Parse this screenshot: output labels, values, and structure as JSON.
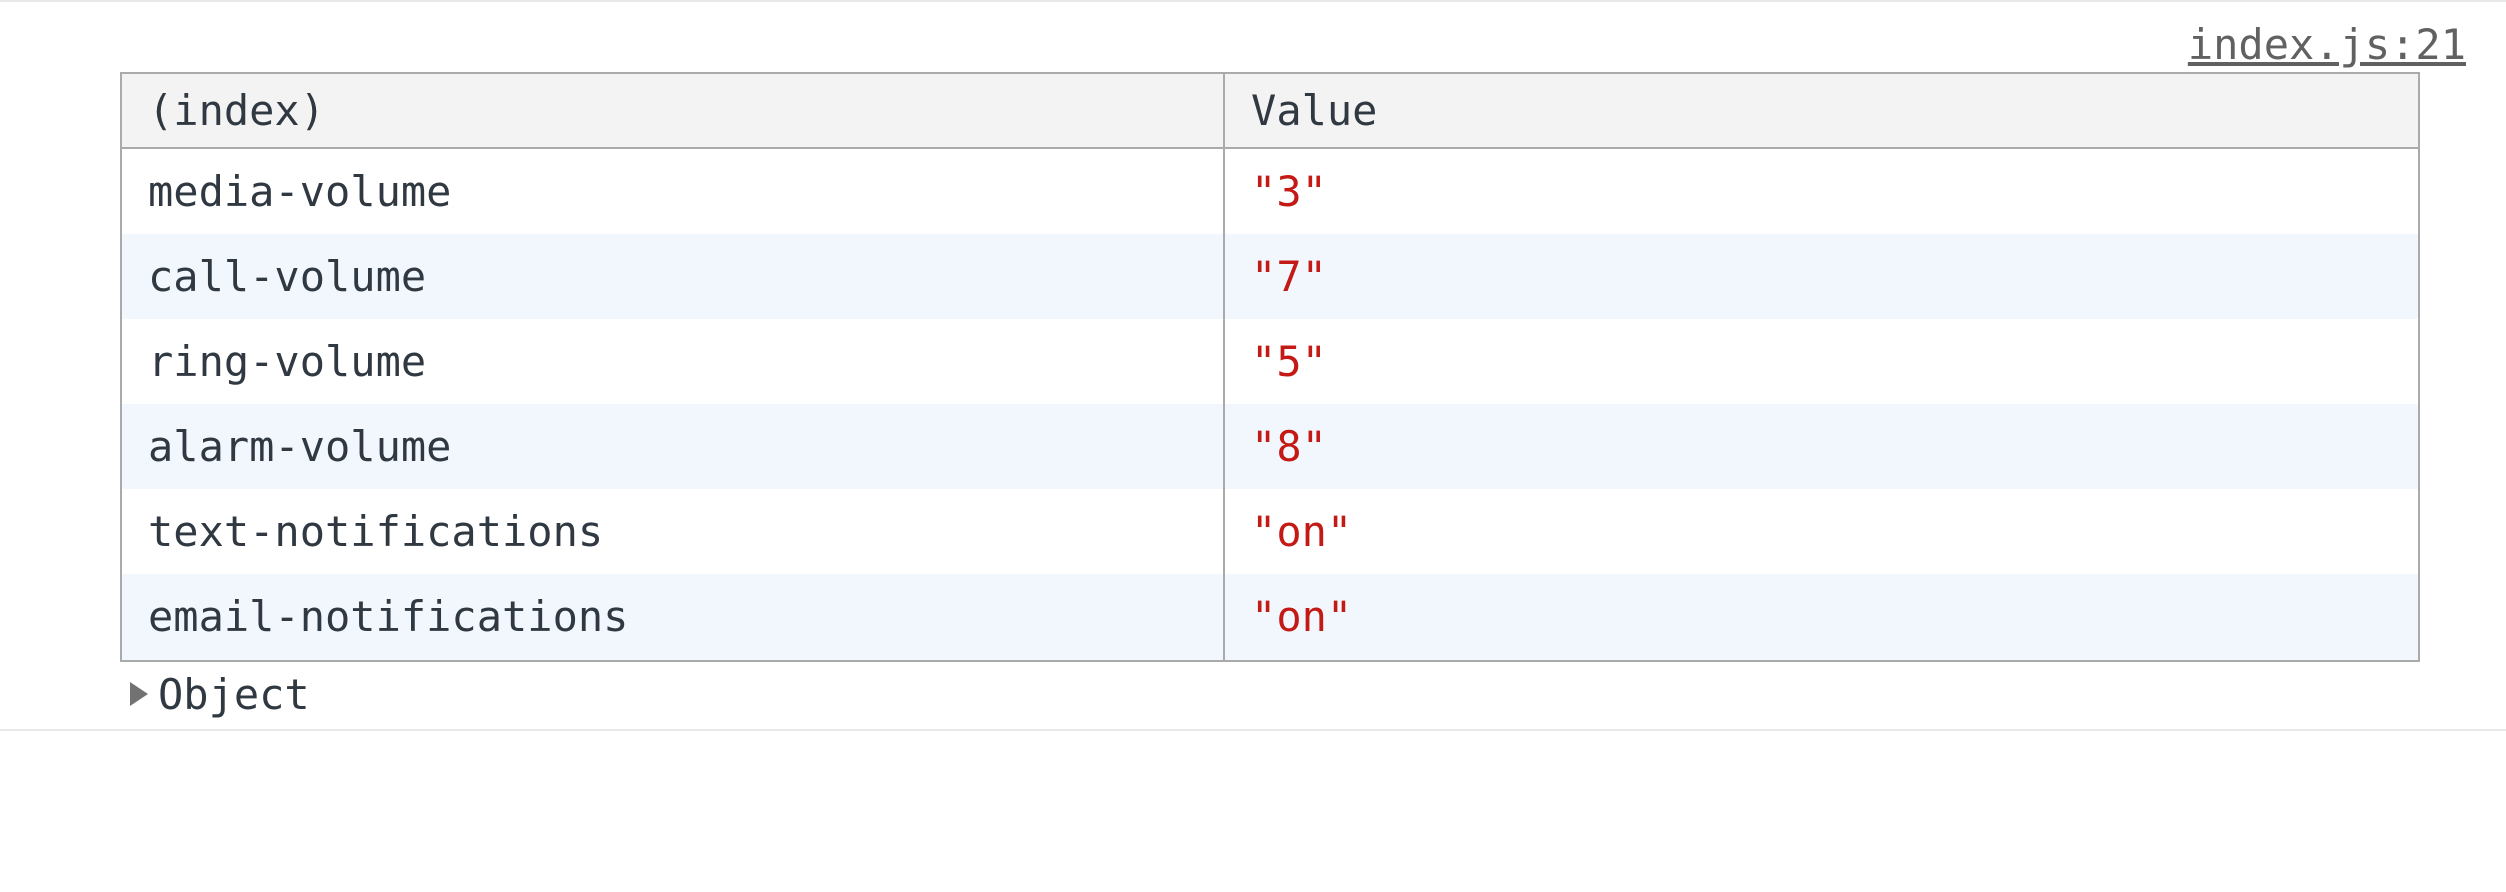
{
  "source_link": "index.js:21",
  "table": {
    "type": "table",
    "columns": [
      "(index)",
      "Value"
    ],
    "column_widths_pct": [
      48,
      52
    ],
    "header_background_color": "#f3f3f3",
    "header_text_color": "#303942",
    "border_color": "#aaaaaa",
    "row_bg_odd": "#ffffff",
    "row_bg_even": "#f2f7fd",
    "index_text_color": "#303942",
    "value_text_color": "#c41a16",
    "font_family": "monospace",
    "font_size_pt": 31,
    "rows": [
      {
        "index": "media-volume",
        "value": "\"3\""
      },
      {
        "index": "call-volume",
        "value": "\"7\""
      },
      {
        "index": "ring-volume",
        "value": "\"5\""
      },
      {
        "index": "alarm-volume",
        "value": "\"8\""
      },
      {
        "index": "text-notifications",
        "value": "\"on\""
      },
      {
        "index": "email-notifications",
        "value": "\"on\""
      }
    ]
  },
  "object_expander": {
    "label": "Object",
    "triangle_color": "#727272",
    "expanded": false
  },
  "background_color": "#ffffff"
}
